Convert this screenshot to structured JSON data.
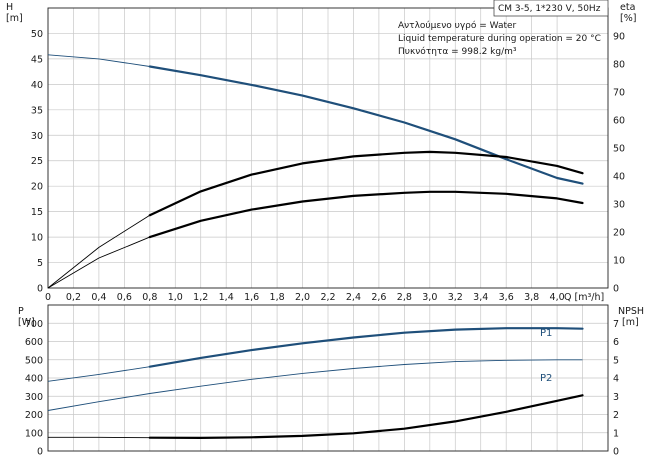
{
  "title_box": "CM 3-5, 1*230 V, 50Hz",
  "info_lines": [
    "Αντλούμενο υγρό = Water",
    "Liquid temperature during operation = 20 °C",
    "Πυκνότητα = 998.2 kg/m³"
  ],
  "colors": {
    "blue": "#1f4f7a",
    "black": "#000000",
    "grid": "#c8c8c8"
  },
  "chart_data": [
    {
      "type": "line",
      "x_label": "Q [m³/h]",
      "x_ticks": [
        "0",
        "0,2",
        "0,4",
        "0,6",
        "0,8",
        "1,0",
        "1,2",
        "1,4",
        "1,6",
        "1,8",
        "2,0",
        "2,2",
        "2,4",
        "2,6",
        "2,8",
        "3,0",
        "3,2",
        "3,4",
        "3,6",
        "3,8",
        "4,0"
      ],
      "xlim": [
        0,
        4.4
      ],
      "y_left_label": [
        "H",
        "[m]"
      ],
      "y_left_ticks": [
        "0",
        "5",
        "10",
        "15",
        "20",
        "25",
        "30",
        "35",
        "40",
        "45",
        "50"
      ],
      "ylim_left": [
        0,
        55
      ],
      "y_right_label": [
        "eta",
        "[%]"
      ],
      "y_right_ticks": [
        "0",
        "10",
        "20",
        "30",
        "40",
        "50",
        "60",
        "70",
        "80",
        "90"
      ],
      "ylim_right": [
        0,
        100
      ],
      "series": [
        {
          "axis": "left",
          "color": "blue",
          "x": [
            0,
            0.4,
            0.8,
            1.2,
            1.6,
            2.0,
            2.4,
            2.8,
            3.2,
            3.6,
            4.0,
            4.2
          ],
          "y": [
            45.8,
            45.0,
            43.5,
            41.8,
            39.9,
            37.8,
            35.3,
            32.5,
            29.2,
            25.3,
            21.6,
            20.5
          ],
          "bold_from": 0.8
        },
        {
          "axis": "right",
          "color": "black",
          "x": [
            0,
            0.4,
            0.8,
            1.2,
            1.6,
            2.0,
            2.4,
            2.8,
            3.0,
            3.2,
            3.6,
            4.0,
            4.2
          ],
          "y": [
            0,
            14.5,
            26,
            34.5,
            40.5,
            44.5,
            47,
            48.3,
            48.6,
            48.3,
            46.8,
            43.6,
            41
          ],
          "bold_from": 0.8
        },
        {
          "axis": "left",
          "color": "black",
          "x": [
            0,
            0.4,
            0.8,
            1.2,
            1.6,
            2.0,
            2.4,
            2.8,
            3.0,
            3.2,
            3.6,
            4.0,
            4.2
          ],
          "y": [
            0,
            5.9,
            10,
            13.2,
            15.4,
            17,
            18.1,
            18.7,
            18.9,
            18.9,
            18.5,
            17.6,
            16.7
          ],
          "bold_from": 0.8
        }
      ]
    },
    {
      "type": "line",
      "y_left_label": [
        "P",
        "[W]"
      ],
      "y_left_ticks": [
        "0",
        "100",
        "200",
        "300",
        "400",
        "500",
        "600",
        "700"
      ],
      "ylim_left": [
        0,
        800
      ],
      "y_right_label": [
        "NPSH",
        "[m]"
      ],
      "y_right_ticks": [
        "0",
        "1",
        "2",
        "3",
        "4",
        "5",
        "6",
        "7"
      ],
      "ylim_right": [
        0,
        8
      ],
      "series": [
        {
          "name": "P1",
          "axis": "left",
          "color": "blue",
          "x": [
            0,
            0.4,
            0.8,
            1.2,
            1.6,
            2.0,
            2.4,
            2.8,
            3.2,
            3.6,
            4.0,
            4.2
          ],
          "y": [
            382,
            420,
            462,
            510,
            553,
            590,
            622,
            648,
            665,
            673,
            673,
            670
          ],
          "bold_from": 0.8
        },
        {
          "name": "P2",
          "axis": "left",
          "color": "blue",
          "x": [
            0,
            0.4,
            0.8,
            1.2,
            1.6,
            2.0,
            2.4,
            2.8,
            3.2,
            3.6,
            4.0,
            4.2
          ],
          "y": [
            222,
            270,
            315,
            355,
            393,
            425,
            452,
            474,
            490,
            497,
            500,
            500
          ],
          "bold_from": 10
        },
        {
          "axis": "right",
          "color": "black",
          "x": [
            0,
            0.4,
            0.8,
            1.2,
            1.6,
            2.0,
            2.4,
            2.8,
            3.2,
            3.6,
            4.0,
            4.2
          ],
          "y": [
            0.75,
            0.75,
            0.73,
            0.72,
            0.75,
            0.83,
            0.97,
            1.22,
            1.62,
            2.15,
            2.75,
            3.05
          ],
          "bold_from": 0.8
        }
      ]
    }
  ]
}
